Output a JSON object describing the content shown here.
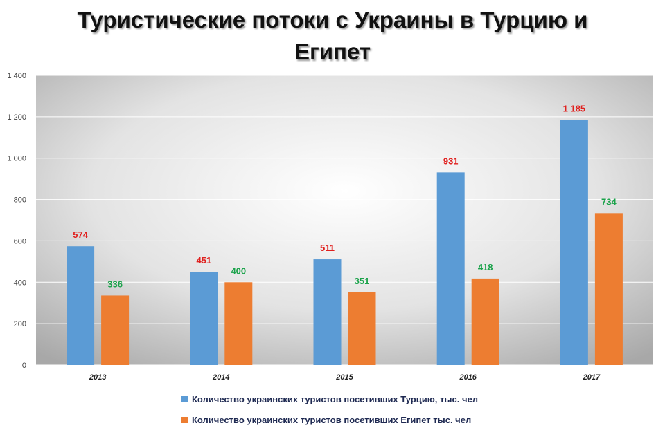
{
  "title_line1": "Туристические потоки с Украины в Турцию и",
  "title_line2": "Египет",
  "colors": {
    "turkey": "#5b9bd5",
    "egypt": "#ed7d31",
    "turkey_label": "#e0201e",
    "egypt_label": "#1aa24a"
  },
  "chart_data": {
    "type": "bar",
    "categories": [
      "2013",
      "2014",
      "2015",
      "2016",
      "2017"
    ],
    "series": [
      {
        "name": "Количество украинских туристов посетивших Турцию, тыс. чел",
        "values": [
          574,
          451,
          511,
          931,
          1185
        ],
        "labels": [
          "574",
          "451",
          "511",
          "931",
          "1 185"
        ]
      },
      {
        "name": "Количество украинских туристов посетивших Египет тыс. чел",
        "values": [
          336,
          400,
          351,
          418,
          734
        ],
        "labels": [
          "336",
          "400",
          "351",
          "418",
          "734"
        ]
      }
    ],
    "yticks": [
      "0",
      "200",
      "400",
      "600",
      "800",
      "1 000",
      "1 200",
      "1 400"
    ],
    "ylim": [
      0,
      1400
    ],
    "grid": true,
    "legend": "bottom"
  }
}
